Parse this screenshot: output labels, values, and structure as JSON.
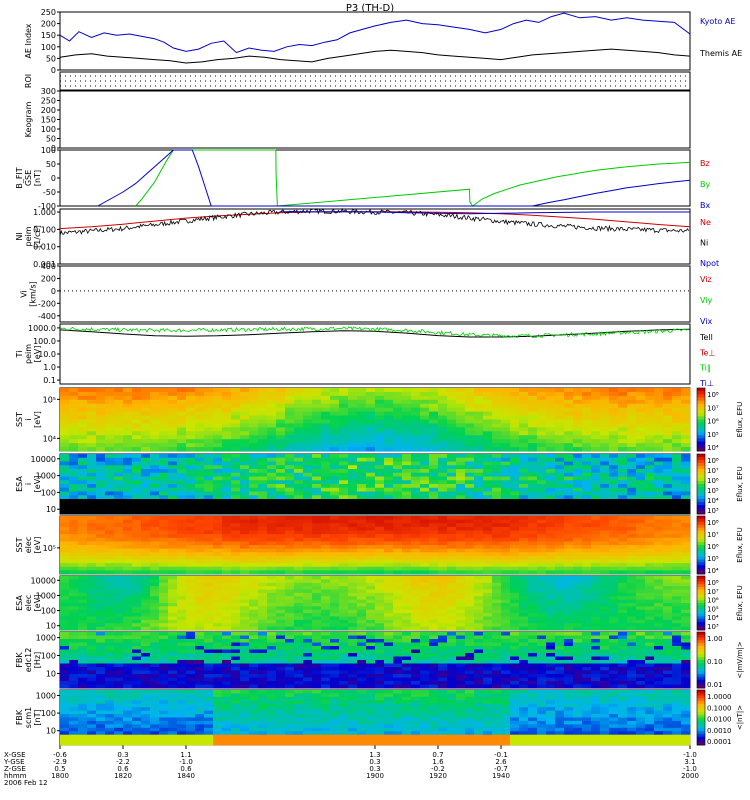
{
  "chart_data": {
    "type": "line",
    "title": "P3 (TH-D)",
    "panels": [
      {
        "id": "ae",
        "ylabel": [
          "AE Index"
        ],
        "ylim": [
          0,
          250
        ],
        "ticks": [
          "250",
          "200",
          "150",
          "100",
          "50",
          "0"
        ],
        "tick_values": [
          250,
          200,
          150,
          100,
          50,
          0
        ],
        "series": [
          {
            "name": "Kyoto AE",
            "color": "#0000cc",
            "x": [
              1800,
              1803,
              1806,
              1810,
              1814,
              1818,
              1822,
              1826,
              1830,
              1833,
              1836,
              1840,
              1844,
              1848,
              1852,
              1856,
              1860,
              1864,
              1868,
              1872,
              1876,
              1880,
              1884,
              1888,
              1892,
              1896,
              1900,
              1905,
              1910,
              1915,
              1920,
              1925,
              1930,
              1935,
              1940,
              1944,
              1948,
              1952,
              1956,
              1960,
              1965,
              1970,
              1975,
              1980,
              1985,
              1990,
              1995,
              2000
            ],
            "y": [
              150,
              125,
              165,
              140,
              160,
              150,
              155,
              145,
              135,
              120,
              95,
              80,
              90,
              115,
              125,
              75,
              95,
              85,
              80,
              100,
              110,
              105,
              120,
              130,
              160,
              175,
              190,
              205,
              215,
              200,
              195,
              185,
              175,
              160,
              175,
              200,
              215,
              205,
              230,
              245,
              225,
              230,
              215,
              225,
              215,
              210,
              205,
              155
            ]
          },
          {
            "name": "Themis AE",
            "color": "#000000",
            "x": [
              1800,
              1805,
              1810,
              1815,
              1820,
              1825,
              1830,
              1835,
              1840,
              1845,
              1850,
              1855,
              1860,
              1865,
              1870,
              1875,
              1880,
              1885,
              1890,
              1895,
              1900,
              1905,
              1910,
              1915,
              1920,
              1925,
              1930,
              1935,
              1940,
              1945,
              1950,
              1955,
              1960,
              1965,
              1970,
              1975,
              1980,
              1985,
              1990,
              1995,
              2000
            ],
            "y": [
              55,
              65,
              70,
              60,
              55,
              50,
              45,
              40,
              30,
              35,
              45,
              50,
              60,
              55,
              45,
              40,
              35,
              50,
              60,
              70,
              80,
              85,
              80,
              75,
              65,
              60,
              55,
              50,
              45,
              55,
              65,
              70,
              75,
              80,
              85,
              90,
              85,
              80,
              75,
              65,
              60
            ]
          }
        ]
      },
      {
        "id": "roi",
        "ylabel": [
          "ROI"
        ],
        "ylim": [
          0,
          1
        ],
        "ticks": [],
        "tick_values": [],
        "series": []
      },
      {
        "id": "kp",
        "ylabel": [
          "Keogram"
        ],
        "ylim": [
          0,
          300
        ],
        "ticks": [
          "300",
          "250",
          "200",
          "150",
          "100",
          "50",
          "0"
        ],
        "tick_values": [
          300,
          250,
          200,
          150,
          100,
          50,
          0
        ],
        "series": []
      },
      {
        "id": "bfit",
        "ylabel": [
          "B_FIT",
          "GSE",
          "[nT]"
        ],
        "ylim": [
          -100,
          100
        ],
        "ticks": [
          "100",
          "50",
          "0",
          "-50",
          "-100"
        ],
        "tick_values": [
          100,
          50,
          0,
          -50,
          -100
        ],
        "series": [
          {
            "name": "Bz",
            "color": "#cc0000",
            "x": [],
            "y": []
          },
          {
            "name": "By",
            "color": "#00cc00",
            "x": [
              1824,
              1826,
              1828,
              1830,
              1832,
              1834,
              1836,
              1868.5,
              1868.6,
              1869,
              1930,
              1930.1,
              1931,
              1934,
              1938,
              1942,
              1946,
              1950,
              1954,
              1958,
              1962,
              1966,
              1970,
              1975,
              1980,
              1985,
              1990,
              1995,
              2000
            ],
            "y": [
              -100,
              -75,
              -45,
              -15,
              25,
              65,
              100,
              100,
              10,
              -100,
              -40,
              -85,
              -100,
              -75,
              -55,
              -40,
              -25,
              -15,
              -5,
              5,
              12,
              20,
              27,
              34,
              40,
              45,
              50,
              53,
              56
            ]
          },
          {
            "name": "Bx",
            "color": "#0000cc",
            "x": [
              1812,
              1816,
              1820,
              1824,
              1828,
              1832,
              1836,
              1842,
              1844,
              1846,
              1848,
              1950,
              1955,
              1960,
              1965,
              1970,
              1975,
              1980,
              1985,
              1990,
              1995,
              2000
            ],
            "y": [
              -100,
              -75,
              -50,
              -20,
              20,
              60,
              100,
              100,
              40,
              -30,
              -100,
              -100,
              -88,
              -78,
              -66,
              -55,
              -45,
              -35,
              -28,
              -20,
              -14,
              -8
            ]
          }
        ]
      },
      {
        "id": "ni",
        "ylabel": [
          "NI",
          "peim",
          "[1/cc]"
        ],
        "ylim": [
          0.001,
          1.5
        ],
        "scale": "log",
        "ticks": [
          "1.000",
          "0.100",
          "0.010",
          "0.001"
        ],
        "tick_values": [
          1,
          0.1,
          0.01,
          0.001
        ],
        "series": [
          {
            "name": "Ne",
            "color": "#cc0000",
            "x": [
              1800,
              1810,
              1820,
              1830,
              1840,
              1850,
              1860,
              1870,
              1880,
              1890,
              1900,
              1910,
              1920,
              1930,
              1940,
              1950,
              1960,
              1970,
              1980,
              1990,
              2000
            ],
            "y": [
              0.11,
              0.14,
              0.2,
              0.3,
              0.45,
              0.6,
              0.75,
              0.9,
              1.0,
              1.05,
              1.05,
              1.02,
              0.97,
              0.9,
              0.8,
              0.65,
              0.5,
              0.38,
              0.27,
              0.19,
              0.14
            ]
          },
          {
            "name": "Ni",
            "color": "#000000",
            "x": [
              1800,
              1810,
              1820,
              1830,
              1840,
              1850,
              1860,
              1870,
              1880,
              1890,
              1900,
              1910,
              1920,
              1930,
              1940,
              1950,
              1960,
              1970,
              1980,
              1990,
              2000
            ],
            "y": [
              0.06,
              0.08,
              0.11,
              0.18,
              0.3,
              0.5,
              0.75,
              1.0,
              1.15,
              1.1,
              1.0,
              0.9,
              0.7,
              0.45,
              0.28,
              0.2,
              0.15,
              0.12,
              0.1,
              0.09,
              0.08
            ]
          },
          {
            "name": "Npot",
            "color": "#0000cc",
            "x": [
              1870,
              1880,
              1890,
              1900,
              1910,
              1920,
              1930,
              1940,
              1950,
              1960,
              1970,
              1980,
              1990,
              2000
            ],
            "y": [
              1.05,
              1.05,
              1.05,
              1.0,
              0.9,
              0.85,
              0.8,
              0.85,
              0.9,
              0.95,
              1.0,
              1.0,
              1.0,
              1.0
            ]
          }
        ]
      },
      {
        "id": "vi",
        "ylabel": [
          "Vi",
          "[km/s]"
        ],
        "ylim": [
          -500,
          400
        ],
        "ticks": [
          "400",
          "200",
          "0",
          "-200",
          "-400"
        ],
        "tick_values": [
          400,
          200,
          0,
          -200,
          -400
        ],
        "series": [
          {
            "name": "Viz",
            "color": "#cc0000",
            "x": [],
            "y": []
          },
          {
            "name": "Viy",
            "color": "#00cc00",
            "x": [],
            "y": []
          },
          {
            "name": "Vix",
            "color": "#0000cc",
            "x": [],
            "y": []
          }
        ]
      },
      {
        "id": "ti",
        "ylabel": [
          "Ti",
          "peim",
          "[eV]"
        ],
        "ylim": [
          0.05,
          2000
        ],
        "scale": "log",
        "ticks": [
          "1000.0",
          "100.0",
          "10.0",
          "1.0",
          "0.1"
        ],
        "tick_values": [
          1000,
          100,
          10,
          1,
          0.1
        ],
        "series": [
          {
            "name": "Tell",
            "color": "#000000",
            "x": [
              1800,
              1810,
              1820,
              1830,
              1840,
              1850,
              1860,
              1870,
              1880,
              1890,
              1900,
              1910,
              1920,
              1930,
              1940,
              1950,
              1960,
              1970,
              1980,
              1990,
              2000
            ],
            "y": [
              700,
              500,
              350,
              250,
              230,
              250,
              300,
              400,
              500,
              600,
              550,
              400,
              260,
              200,
              200,
              230,
              300,
              400,
              550,
              700,
              800
            ]
          },
          {
            "name": "Te⊥",
            "color": "#cc0000",
            "x": [],
            "y": []
          },
          {
            "name": "Ti∥",
            "color": "#00cc00",
            "x": [
              1800,
              1810,
              1820,
              1830,
              1840,
              1850,
              1860,
              1870,
              1880,
              1890,
              1900,
              1910,
              1920,
              1930,
              1940,
              1950,
              1960,
              1970,
              1980,
              1990,
              2000
            ],
            "y": [
              900,
              800,
              700,
              650,
              650,
              700,
              750,
              800,
              850,
              900,
              800,
              650,
              450,
              300,
              250,
              250,
              300,
              350,
              450,
              550,
              700
            ]
          },
          {
            "name": "Ti⊥",
            "color": "#0000cc",
            "x": [],
            "y": []
          }
        ]
      }
    ],
    "spectrograms": [
      {
        "id": "sst-i",
        "ylabel": [
          "SST",
          "i",
          "[eV]"
        ],
        "ticks": [
          "10⁵",
          "10⁴"
        ],
        "tick_values": [
          0.18,
          0.8
        ],
        "colorbar": {
          "label": "Eflux, EFU",
          "ticks": [
            "10⁸",
            "10⁷",
            "10⁶",
            "10⁵",
            "10⁴"
          ]
        }
      },
      {
        "id": "esa-i",
        "ylabel": [
          "ESA",
          "i",
          "[eV]"
        ],
        "ticks": [
          "10000",
          "1000",
          "100",
          "10"
        ],
        "tick_values": [
          0.08,
          0.36,
          0.64,
          0.92
        ],
        "colorbar": {
          "label": "Eflux, EFU",
          "ticks": [
            "10⁸",
            "10⁷",
            "10⁶",
            "10⁵",
            "10⁴",
            "10³"
          ]
        }
      },
      {
        "id": "sst-e",
        "ylabel": [
          "SST",
          "elec",
          "[eV]"
        ],
        "ticks": [
          "10⁵"
        ],
        "tick_values": [
          0.55
        ],
        "colorbar": {
          "label": "Eflux, EFU",
          "ticks": [
            "10⁸",
            "10⁷",
            "10⁶",
            "10⁵",
            "10⁴"
          ]
        }
      },
      {
        "id": "esa-e",
        "ylabel": [
          "ESA",
          "elec",
          "[eV]"
        ],
        "ticks": [
          "10000",
          "1000",
          "100",
          "10"
        ],
        "tick_values": [
          0.08,
          0.36,
          0.64,
          0.92
        ],
        "colorbar": {
          "label": "Eflux, EFU",
          "ticks": [
            "10⁸",
            "10⁷",
            "10⁶",
            "10⁵",
            "10⁴",
            "10³"
          ]
        }
      },
      {
        "id": "fbk-e",
        "ylabel": [
          "FBK",
          "edc12",
          "[Hz]"
        ],
        "ticks": [
          "1000",
          "100",
          "10"
        ],
        "tick_values": [
          0.1,
          0.42,
          0.74
        ],
        "colorbar": {
          "label": "<|mV/m|>",
          "ticks": [
            "1.00",
            "0.10",
            "0.01"
          ]
        }
      },
      {
        "id": "fbk-b",
        "ylabel": [
          "FBK",
          "scm1",
          "[nT]"
        ],
        "ticks": [
          "1000",
          "100",
          "10"
        ],
        "tick_values": [
          0.1,
          0.42,
          0.74
        ],
        "colorbar": {
          "label": "<|nT|>",
          "ticks": [
            "1.0000",
            "0.1000",
            "0.0100",
            "0.0010",
            "0.0001"
          ]
        }
      }
    ],
    "xaxis": {
      "range": [
        1800,
        2000
      ],
      "row_labels": [
        "X-GSE",
        "Y-GSE",
        "Z-GSE",
        "hhmm",
        "2006 Feb 12"
      ],
      "positions": [
        {
          "x": 1800,
          "vals": [
            "-0.6",
            "-2.9",
            "0.5",
            "1800"
          ]
        },
        {
          "x": 1820,
          "vals": [
            "0.3",
            "-2.2",
            "0.6",
            "1820"
          ]
        },
        {
          "x": 1840,
          "vals": [
            "1.1",
            "-1.0",
            "0.6",
            "1840"
          ]
        },
        {
          "x": 1900,
          "vals": [
            "1.3",
            "0.3",
            "0.3",
            "1900"
          ]
        },
        {
          "x": 1920,
          "vals": [
            "0.7",
            "1.6",
            "-0.2",
            "1920"
          ]
        },
        {
          "x": 1940,
          "vals": [
            "-0.1",
            "2.6",
            "-0.7",
            "1940"
          ]
        },
        {
          "x": 2000,
          "vals": [
            "-1.0",
            "3.1",
            "-1.0",
            "2000"
          ]
        }
      ]
    }
  }
}
